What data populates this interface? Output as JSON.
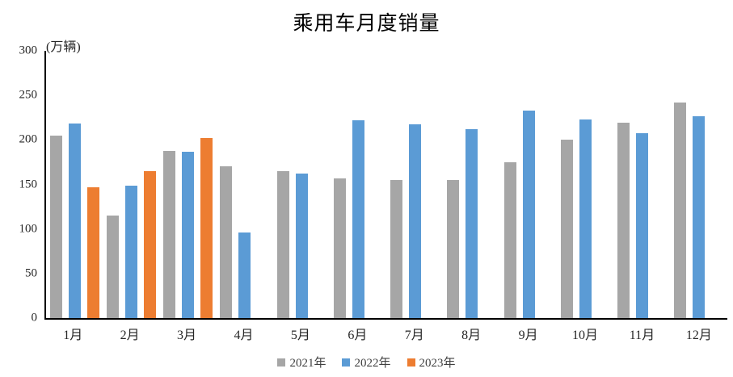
{
  "title": "乘用车月度销量",
  "chart_data": {
    "type": "bar",
    "title": "乘用车月度销量",
    "unit_label": "(万辆)",
    "xlabel": "",
    "ylabel": "(万辆)",
    "ylim": [
      0,
      300
    ],
    "yticks": [
      0,
      50,
      100,
      150,
      200,
      250,
      300
    ],
    "grid": false,
    "legend_position": "bottom",
    "categories": [
      "1月",
      "2月",
      "3月",
      "4月",
      "5月",
      "6月",
      "7月",
      "8月",
      "9月",
      "10月",
      "11月",
      "12月"
    ],
    "series": [
      {
        "name": "2021年",
        "color": "#A6A6A6",
        "values": [
          204.5,
          115.5,
          187.4,
          170.4,
          164.6,
          156.9,
          155.1,
          155.2,
          175.1,
          200.7,
          219.2,
          242.2
        ]
      },
      {
        "name": "2022年",
        "color": "#5B9BD5",
        "values": [
          218.6,
          148.7,
          186.4,
          96.5,
          162.3,
          222.2,
          217.4,
          212.5,
          233.2,
          223.1,
          207.5,
          226.3
        ]
      },
      {
        "name": "2023年",
        "color": "#ED7D31",
        "values": [
          146.9,
          165.3,
          201.7,
          null,
          null,
          null,
          null,
          null,
          null,
          null,
          null,
          null
        ]
      }
    ]
  }
}
